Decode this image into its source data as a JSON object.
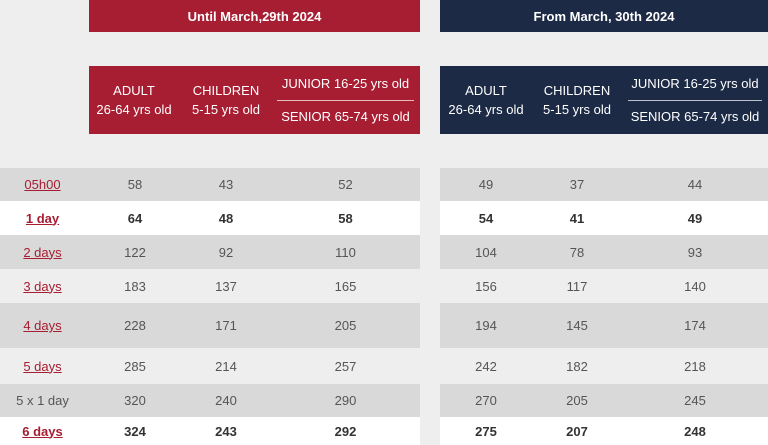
{
  "periods": {
    "before": {
      "title": "Until March,29th 2024",
      "color": "#a71d31"
    },
    "after": {
      "title": "From March, 30th 2024",
      "color": "#1c2a45"
    }
  },
  "headers": {
    "adult_l1": "ADULT",
    "adult_l2": "26-64 yrs old",
    "children_l1": "CHILDREN",
    "children_l2": "5-15 yrs old",
    "junior": "JUNIOR 16-25 yrs old",
    "senior": "SENIOR 65-74 yrs old"
  },
  "rows": [
    {
      "label": "05h00",
      "link": true,
      "bold": false,
      "before": [
        "58",
        "43",
        "52"
      ],
      "after": [
        "49",
        "37",
        "44"
      ]
    },
    {
      "label": "1 day",
      "link": true,
      "bold": true,
      "before": [
        "64",
        "48",
        "58"
      ],
      "after": [
        "54",
        "41",
        "49"
      ]
    },
    {
      "label": "2 days",
      "link": true,
      "bold": false,
      "before": [
        "122",
        "92",
        "110"
      ],
      "after": [
        "104",
        "78",
        "93"
      ]
    },
    {
      "label": "3 days",
      "link": true,
      "bold": false,
      "before": [
        "183",
        "137",
        "165"
      ],
      "after": [
        "156",
        "117",
        "140"
      ]
    },
    {
      "label": "4 days",
      "link": true,
      "bold": false,
      "before": [
        "228",
        "171",
        "205"
      ],
      "after": [
        "194",
        "145",
        "174"
      ]
    },
    {
      "label": "5 days",
      "link": true,
      "bold": false,
      "before": [
        "285",
        "214",
        "257"
      ],
      "after": [
        "242",
        "182",
        "218"
      ]
    },
    {
      "label": "5 x 1 day",
      "link": false,
      "bold": false,
      "before": [
        "320",
        "240",
        "290"
      ],
      "after": [
        "270",
        "205",
        "245"
      ]
    },
    {
      "label": "6 days",
      "link": true,
      "bold": true,
      "before": [
        "324",
        "243",
        "292"
      ],
      "after": [
        "275",
        "207",
        "248"
      ]
    }
  ]
}
